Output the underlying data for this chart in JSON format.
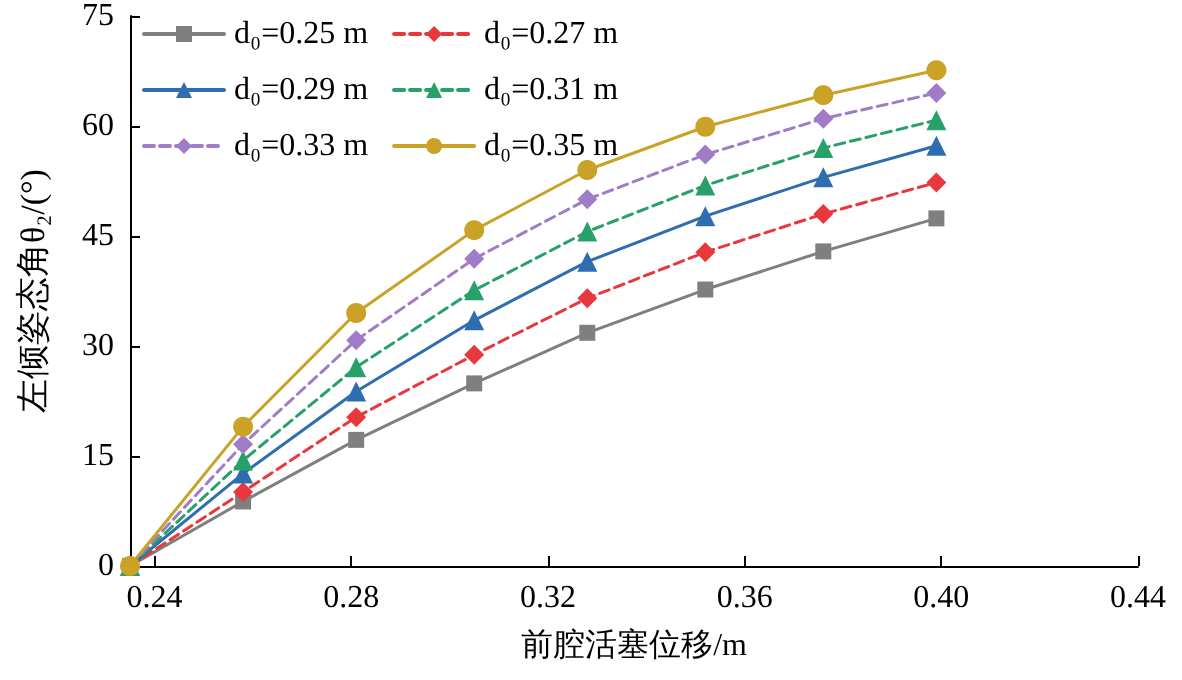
{
  "chart_data": {
    "type": "line",
    "xlabel": "前腔活塞位移/m",
    "ylabel": "左倾姿态角θ₂/(°)",
    "x": [
      0.235,
      0.258,
      0.281,
      0.305,
      0.328,
      0.352,
      0.376,
      0.399
    ],
    "series": [
      {
        "name": "d₀=0.25 m",
        "color": "#7f7f7f",
        "marker": "square",
        "line_style": "solid",
        "values": [
          0,
          8.8,
          17.2,
          24.9,
          31.8,
          37.7,
          42.9,
          47.4
        ]
      },
      {
        "name": "d₀=0.27 m",
        "color": "#e8383d",
        "marker": "diamond",
        "line_style": "dashed",
        "values": [
          0,
          10.1,
          20.3,
          28.8,
          36.5,
          42.8,
          48.0,
          52.3
        ]
      },
      {
        "name": "d₀=0.29 m",
        "color": "#2e6eb0",
        "marker": "triangle",
        "line_style": "solid",
        "values": [
          0,
          12.6,
          23.8,
          33.5,
          41.5,
          47.7,
          53.0,
          57.3
        ]
      },
      {
        "name": "d₀=0.31 m",
        "color": "#27a06a",
        "marker": "triangle",
        "line_style": "dashed",
        "values": [
          0,
          14.4,
          27.1,
          37.6,
          45.6,
          51.9,
          57.0,
          60.8
        ]
      },
      {
        "name": "d₀=0.33 m",
        "color": "#a07cc8",
        "marker": "diamond",
        "line_style": "dashed",
        "values": [
          0,
          16.6,
          30.8,
          41.9,
          50.0,
          56.1,
          61.0,
          64.5
        ]
      },
      {
        "name": "d₀=0.35 m",
        "color": "#c9a227",
        "marker": "circle",
        "line_style": "solid",
        "values": [
          0,
          19.0,
          34.5,
          45.8,
          54.0,
          59.9,
          64.2,
          67.6
        ]
      }
    ],
    "xlim": [
      0.235,
      0.44
    ],
    "xticks": [
      {
        "value": 0.24,
        "label": "0.24"
      },
      {
        "value": 0.28,
        "label": "0.28"
      },
      {
        "value": 0.32,
        "label": "0.32"
      },
      {
        "value": 0.36,
        "label": "0.36"
      },
      {
        "value": 0.4,
        "label": "0.40"
      },
      {
        "value": 0.44,
        "label": "0.44"
      }
    ],
    "ylim": [
      0,
      75
    ],
    "yticks": [
      0,
      15,
      30,
      45,
      60,
      75
    ],
    "grid": false,
    "legend": "top left"
  }
}
